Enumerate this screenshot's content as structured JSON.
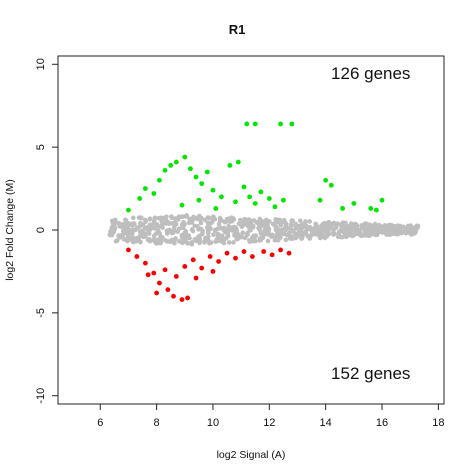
{
  "chart_data": {
    "type": "scatter",
    "title": "R1",
    "xlabel": "log2 Signal (A)",
    "ylabel": "log2 Fold Change (M)",
    "xlim": [
      4.5,
      18.2
    ],
    "ylim": [
      -10.5,
      10.5
    ],
    "xticks": [
      6,
      8,
      10,
      12,
      14,
      16,
      18
    ],
    "yticks": [
      -10,
      -5,
      0,
      5,
      10
    ],
    "grid": false,
    "annotations": [
      {
        "text": "126 genes",
        "x": 15.6,
        "y": 9.1
      },
      {
        "text": "152 genes",
        "x": 15.6,
        "y": -9.0
      }
    ],
    "colors": {
      "up": "#00e600",
      "down": "#ff0000",
      "unchanged": "#bebebe"
    },
    "series": [
      {
        "values": [
          [
            6.5,
            0.1
          ],
          [
            6.8,
            -0.3
          ],
          [
            7.0,
            0.4
          ],
          [
            7.3,
            -0.5
          ],
          [
            7.6,
            0.6
          ],
          [
            7.9,
            -0.6
          ],
          [
            8.2,
            0.7
          ],
          [
            8.5,
            -0.7
          ],
          [
            8.8,
            0.8
          ],
          [
            9.1,
            -0.8
          ],
          [
            9.4,
            0.7
          ],
          [
            9.7,
            -0.7
          ],
          [
            10.0,
            0.6
          ],
          [
            10.3,
            -0.6
          ],
          [
            10.6,
            0.5
          ],
          [
            10.9,
            -0.5
          ],
          [
            11.2,
            0.4
          ],
          [
            11.5,
            -0.4
          ],
          [
            11.8,
            0.3
          ],
          [
            12.1,
            -0.3
          ],
          [
            12.4,
            0.3
          ],
          [
            12.7,
            -0.2
          ],
          [
            13.0,
            0.2
          ],
          [
            13.3,
            -0.2
          ],
          [
            13.6,
            0.1
          ],
          [
            13.9,
            -0.1
          ],
          [
            14.2,
            0.1
          ],
          [
            14.5,
            -0.1
          ],
          [
            14.8,
            0.1
          ],
          [
            15.1,
            0.0
          ],
          [
            15.4,
            0.1
          ],
          [
            15.7,
            -0.1
          ],
          [
            16.0,
            0.0
          ],
          [
            16.3,
            0.1
          ],
          [
            16.6,
            -0.1
          ],
          [
            16.9,
            0.0
          ],
          [
            17.1,
            0.0
          ]
        ]
      },
      {
        "values": [
          [
            7.0,
            1.2
          ],
          [
            7.4,
            1.9
          ],
          [
            7.6,
            2.5
          ],
          [
            7.9,
            2.2
          ],
          [
            8.1,
            3.0
          ],
          [
            8.3,
            3.6
          ],
          [
            8.5,
            3.9
          ],
          [
            8.7,
            4.1
          ],
          [
            9.0,
            4.4
          ],
          [
            9.2,
            3.7
          ],
          [
            9.4,
            3.2
          ],
          [
            9.6,
            2.8
          ],
          [
            9.8,
            3.5
          ],
          [
            10.0,
            2.4
          ],
          [
            10.3,
            2.0
          ],
          [
            10.6,
            3.9
          ],
          [
            10.9,
            4.1
          ],
          [
            11.1,
            2.6
          ],
          [
            11.3,
            2.0
          ],
          [
            11.5,
            1.6
          ],
          [
            11.7,
            2.3
          ],
          [
            12.0,
            1.9
          ],
          [
            12.2,
            1.4
          ],
          [
            12.5,
            1.8
          ],
          [
            11.2,
            6.4
          ],
          [
            11.5,
            6.4
          ],
          [
            12.4,
            6.4
          ],
          [
            12.8,
            6.4
          ],
          [
            14.0,
            3.0
          ],
          [
            14.2,
            2.7
          ],
          [
            13.8,
            1.8
          ],
          [
            14.6,
            1.3
          ],
          [
            15.0,
            1.6
          ],
          [
            15.6,
            1.3
          ],
          [
            16.0,
            1.8
          ],
          [
            15.8,
            1.2
          ],
          [
            8.9,
            1.5
          ],
          [
            9.5,
            1.8
          ],
          [
            10.1,
            1.3
          ],
          [
            10.8,
            1.7
          ]
        ]
      },
      {
        "values": [
          [
            7.0,
            -1.2
          ],
          [
            7.3,
            -1.6
          ],
          [
            7.6,
            -2.0
          ],
          [
            7.9,
            -2.6
          ],
          [
            8.1,
            -3.2
          ],
          [
            8.4,
            -3.6
          ],
          [
            8.6,
            -4.0
          ],
          [
            8.9,
            -4.2
          ],
          [
            9.1,
            -4.1
          ],
          [
            8.0,
            -3.8
          ],
          [
            8.7,
            -2.8
          ],
          [
            9.0,
            -2.2
          ],
          [
            9.3,
            -1.8
          ],
          [
            9.6,
            -2.3
          ],
          [
            9.9,
            -1.6
          ],
          [
            10.2,
            -1.9
          ],
          [
            10.5,
            -1.4
          ],
          [
            10.8,
            -1.7
          ],
          [
            11.1,
            -1.3
          ],
          [
            11.4,
            -1.6
          ],
          [
            11.8,
            -1.3
          ],
          [
            12.1,
            -1.5
          ],
          [
            12.4,
            -1.2
          ],
          [
            12.7,
            -1.4
          ],
          [
            7.7,
            -2.7
          ],
          [
            8.3,
            -2.4
          ],
          [
            9.4,
            -2.9
          ],
          [
            10.0,
            -2.5
          ]
        ]
      }
    ]
  }
}
